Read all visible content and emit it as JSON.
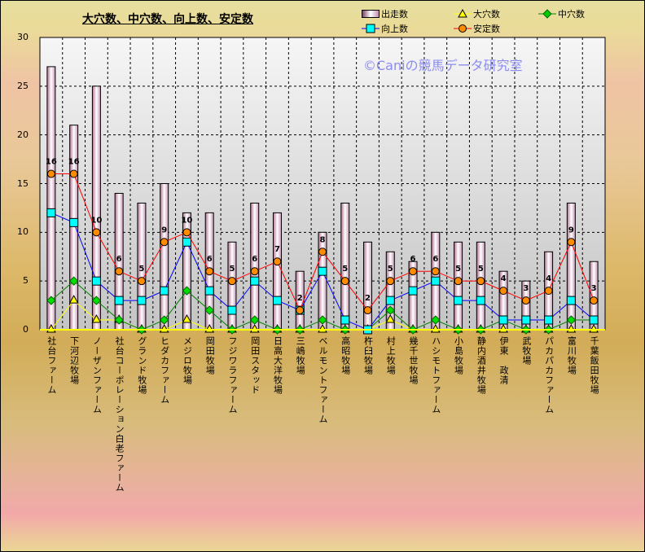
{
  "chart_data": {
    "type": "bar",
    "title": "大穴数、中穴数、向上数、安定数",
    "watermark": "©Caniの競馬データ研究室",
    "xlabel": "",
    "ylabel": "",
    "ylim": [
      0,
      30
    ],
    "yticks": [
      "0",
      "5",
      "10",
      "15",
      "20",
      "25",
      "30"
    ],
    "grid": true,
    "legend_position": "top-right",
    "categories": [
      "社台ファーム",
      "下河辺牧場",
      "ノーザンファーム",
      "社台コーポレーション白老ファーム",
      "グランド牧場",
      "ヒダカファーム",
      "メジロ牧場",
      "岡田牧場",
      "フジワラファーム",
      "岡田スタッド",
      "日高大洋牧場",
      "三嶋牧場",
      "ベルモントファーム",
      "高昭牧場",
      "杵臼牧場",
      "村上牧場",
      "幾千世牧場",
      "ハシモトファーム",
      "小島牧場",
      "静内酒井牧場",
      "伊東　政清",
      "武牧場",
      "パカパカファーム",
      "富川牧場",
      "千葉飯田牧場"
    ],
    "series": [
      {
        "name": "出走数",
        "kind": "bar",
        "values": [
          27,
          21,
          25,
          14,
          13,
          15,
          12,
          12,
          9,
          13,
          12,
          6,
          10,
          13,
          9,
          8,
          7,
          10,
          9,
          9,
          6,
          5,
          8,
          13,
          7
        ]
      },
      {
        "name": "大穴数",
        "kind": "line",
        "color": "#ffff00",
        "marker": "triangle",
        "values": [
          0,
          3,
          1,
          1,
          0,
          0,
          1,
          0,
          0,
          0,
          0,
          0,
          0,
          0,
          0,
          1,
          0,
          0,
          0,
          0,
          0,
          0,
          0,
          0,
          0
        ]
      },
      {
        "name": "中穴数",
        "kind": "line",
        "color": "#008000",
        "marker": "diamond",
        "values": [
          3,
          5,
          3,
          1,
          0,
          1,
          4,
          2,
          0,
          1,
          0,
          0,
          1,
          0,
          0,
          2,
          0,
          1,
          0,
          0,
          1,
          0,
          0,
          1,
          1
        ]
      },
      {
        "name": "向上数",
        "kind": "line",
        "color": "#0000ff",
        "marker": "square",
        "values": [
          12,
          11,
          5,
          3,
          3,
          4,
          9,
          4,
          2,
          5,
          3,
          2,
          6,
          1,
          0,
          3,
          4,
          5,
          3,
          3,
          1,
          1,
          1,
          3,
          1
        ]
      },
      {
        "name": "安定数",
        "kind": "line",
        "color": "#ff0000",
        "marker": "circle",
        "values": [
          16,
          16,
          10,
          6,
          5,
          9,
          10,
          6,
          5,
          6,
          7,
          2,
          8,
          5,
          2,
          5,
          6,
          6,
          5,
          5,
          4,
          3,
          4,
          9,
          3
        ],
        "labels": [
          "16",
          "16",
          "10",
          "6",
          "5",
          "9",
          "10",
          "6",
          "5",
          "6",
          "7",
          "2",
          "8",
          "5",
          "2",
          "5",
          "6",
          "6",
          "5",
          "5",
          "4",
          "3",
          "4",
          "9",
          "3"
        ]
      }
    ]
  }
}
